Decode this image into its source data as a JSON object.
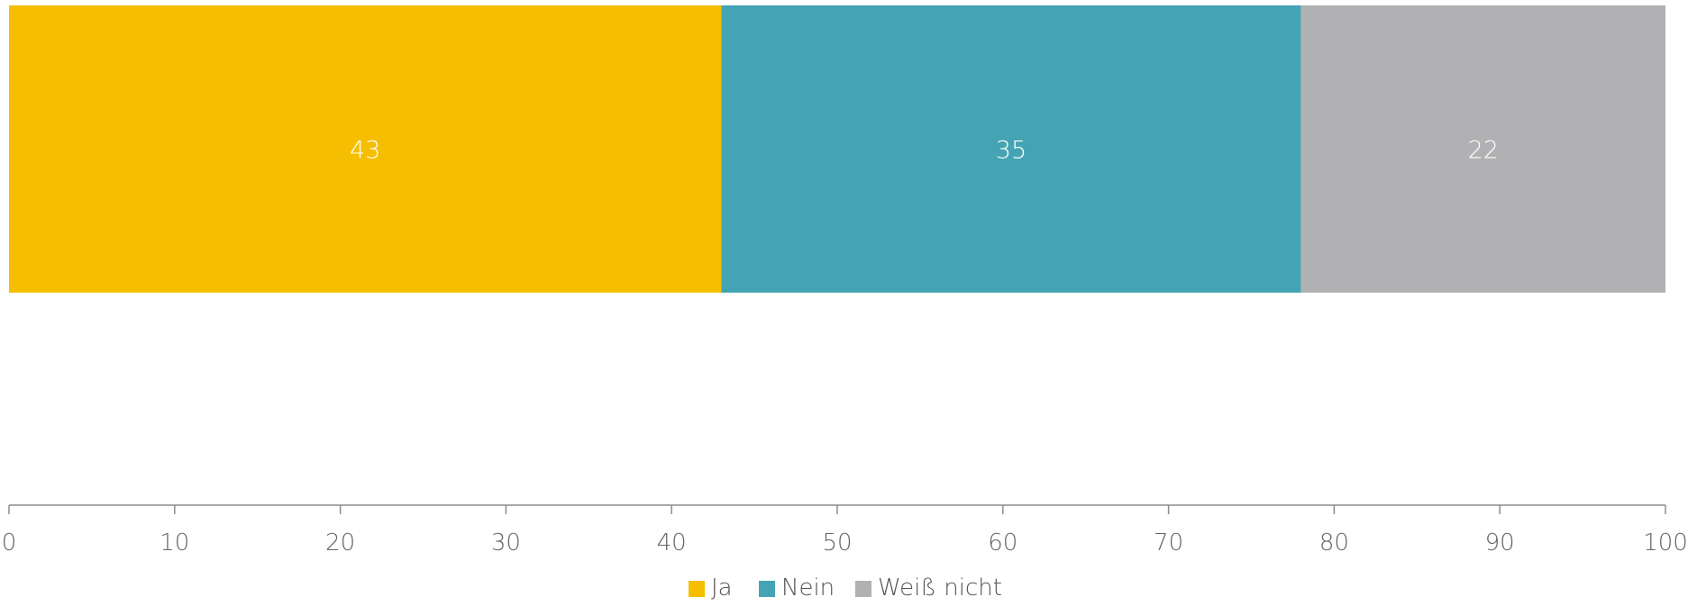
{
  "chart_data": {
    "type": "bar",
    "orientation": "horizontal",
    "stacked": true,
    "title": "",
    "xlabel": "",
    "ylabel": "",
    "categories": [
      ""
    ],
    "series": [
      {
        "name": "Ja",
        "values": [
          43
        ],
        "color": "#F5BE00"
      },
      {
        "name": "Nein",
        "values": [
          35
        ],
        "color": "#44A4B3"
      },
      {
        "name": "Weiß nicht",
        "values": [
          22
        ],
        "color": "#B1B1B3"
      }
    ],
    "xlim": [
      0,
      100
    ],
    "xticks": [
      0,
      10,
      20,
      30,
      40,
      50,
      60,
      70,
      80,
      90,
      100
    ],
    "xtick_labels": [
      "0",
      "10",
      "20",
      "30",
      "40",
      "50",
      "60",
      "70",
      "80",
      "90",
      "100"
    ],
    "data_labels": [
      "43",
      "35",
      "22"
    ],
    "grid": false,
    "legend": {
      "placement": "bottom-center",
      "entries": [
        "Ja",
        "Nein",
        "Weiß nicht"
      ]
    },
    "axis_color": "#8C8C8C"
  }
}
